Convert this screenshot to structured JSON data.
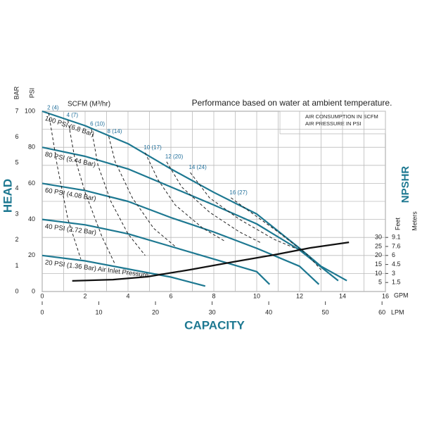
{
  "chart_data": {
    "type": "line",
    "title": "Performance based on water at ambient temperature.",
    "notes": [
      "AIR CONSUMPTION IN SCFM",
      "AIR PRESSURE IN PSI"
    ],
    "x_label": "CAPACITY",
    "y_label": "HEAD",
    "y2_label": "NPSHR",
    "scfm_label": "SCFM (M³/hr)",
    "xlim": [
      0,
      16
    ],
    "xticks": [
      0,
      2,
      4,
      6,
      8,
      10,
      12,
      14,
      16
    ],
    "x_unit": "GPM",
    "minor_xticks": [
      1,
      3,
      5,
      7,
      9,
      11,
      13,
      15
    ],
    "x2lim": [
      0,
      60.6
    ],
    "x2ticks": [
      0,
      10,
      20,
      30,
      40,
      50,
      60
    ],
    "x2_unit": "LPM",
    "ylim": [
      0,
      100
    ],
    "yticks": [
      0,
      20,
      40,
      60,
      80,
      100
    ],
    "y_unit": "PSI",
    "minor_yticks": [
      10,
      30,
      50,
      70,
      90
    ],
    "y3lim": [
      0,
      7
    ],
    "y3ticks": [
      0,
      1,
      2,
      3,
      4,
      5,
      6,
      7
    ],
    "y3_unit": "BAR",
    "y2lim": [
      0,
      100
    ],
    "y2ticks": [
      5,
      10,
      15,
      20,
      25,
      30
    ],
    "y2_unit": "Feet",
    "y2ticks_meters": [
      {
        "value": 5,
        "label": "1.5"
      },
      {
        "value": 10,
        "label": "3"
      },
      {
        "value": 15,
        "label": "4.5"
      },
      {
        "value": 20,
        "label": "6"
      },
      {
        "value": 25,
        "label": "7.6"
      },
      {
        "value": 30,
        "label": "9.1"
      }
    ],
    "y2_meters_unit": "Meters",
    "grid": true,
    "series": [
      {
        "name": "100 PSI (6.8 Bar)",
        "color": "#1d7891",
        "dashed": false,
        "x": [
          0,
          2,
          4,
          6,
          8,
          10,
          12,
          13,
          14.2
        ],
        "values": [
          100,
          92,
          82,
          68,
          55,
          43,
          24,
          14,
          6
        ]
      },
      {
        "name": "80 PSI (5.44 Bar)",
        "color": "#1d7891",
        "dashed": false,
        "x": [
          0,
          2,
          4,
          6,
          8,
          10,
          12,
          13.8
        ],
        "values": [
          80,
          75,
          68,
          58,
          48,
          37.5,
          23,
          6
        ]
      },
      {
        "name": "60 PSI (4.08 Bar)",
        "color": "#1d7891",
        "dashed": false,
        "x": [
          0,
          2,
          4,
          6,
          8,
          10,
          12,
          12.9
        ],
        "values": [
          60,
          56,
          50,
          41,
          33,
          24,
          14,
          4
        ]
      },
      {
        "name": "40 PSI (2.72 Bar)",
        "color": "#1d7891",
        "dashed": false,
        "x": [
          0,
          2,
          4,
          6,
          8,
          10,
          10.6
        ],
        "values": [
          40,
          37,
          32,
          25,
          18,
          11,
          4
        ]
      },
      {
        "name": "20 PSI (1.36 Bar) Air Inlet Pressure",
        "color": "#1d7891",
        "dashed": false,
        "x": [
          0,
          2,
          4,
          6,
          7.6
        ],
        "values": [
          20,
          17,
          12.5,
          8,
          3
        ]
      },
      {
        "name": "2 (4)",
        "color": "#222222",
        "dashed": true,
        "x": [
          0.3,
          0.7,
          1.2,
          1.8
        ],
        "values": [
          99,
          70,
          40,
          18
        ]
      },
      {
        "name": "4 (7)",
        "color": "#222222",
        "dashed": true,
        "x": [
          1.2,
          1.5,
          2,
          2.8,
          3.4
        ],
        "values": [
          95,
          75,
          55,
          30,
          15
        ]
      },
      {
        "name": "6 (10)",
        "color": "#222222",
        "dashed": true,
        "x": [
          2.3,
          2.6,
          3.2,
          4,
          4.8
        ],
        "values": [
          90,
          70,
          50,
          32,
          20
        ]
      },
      {
        "name": "8 (14)",
        "color": "#222222",
        "dashed": true,
        "x": [
          3.1,
          3.4,
          4.2,
          5.2,
          6.2
        ],
        "values": [
          86,
          72,
          52,
          35,
          25
        ]
      },
      {
        "name": "10 (17)",
        "color": "#222222",
        "dashed": true,
        "x": [
          4.8,
          5.4,
          6.2,
          7.5,
          8.5
        ],
        "values": [
          77,
          62,
          48,
          35,
          28
        ]
      },
      {
        "name": "12 (20)",
        "color": "#222222",
        "dashed": true,
        "x": [
          5.8,
          6.5,
          7.8,
          9.2,
          10.2
        ],
        "values": [
          72,
          58,
          44,
          33,
          27
        ]
      },
      {
        "name": "14 (24)",
        "color": "#222222",
        "dashed": true,
        "x": [
          6.9,
          7.8,
          9.2,
          10.8,
          11.8
        ],
        "values": [
          66,
          52,
          40,
          29,
          24
        ]
      },
      {
        "name": "16 (27)",
        "color": "#222222",
        "dashed": true,
        "x": [
          8.8,
          9.6,
          11,
          12.4,
          13
        ],
        "values": [
          52,
          45,
          33,
          20,
          12
        ]
      },
      {
        "name": "NPSHR",
        "color": "#111111",
        "dashed": false,
        "axis": "y2",
        "x": [
          1.4,
          3.3,
          4.9,
          6.9,
          8.9,
          10.8,
          12.5,
          14.3
        ],
        "values": [
          5.9,
          6.6,
          8.2,
          12.1,
          16.4,
          20.3,
          24.2,
          27.3
        ]
      }
    ]
  }
}
